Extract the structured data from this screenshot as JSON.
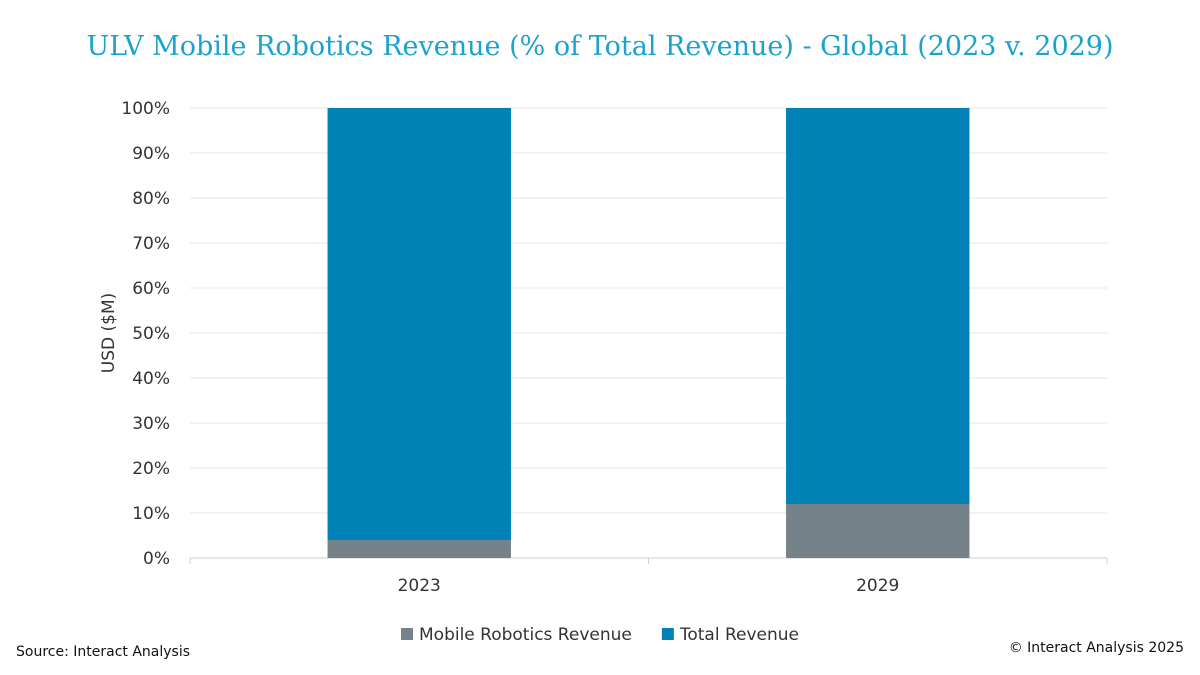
{
  "chart_data": {
    "type": "bar",
    "stacked": true,
    "title": "ULV Mobile Robotics Revenue (% of Total Revenue) - Global (2023 v. 2029)",
    "categories": [
      "2023",
      "2029"
    ],
    "series": [
      {
        "name": "Mobile Robotics Revenue",
        "color": "#76828a",
        "values": [
          4,
          12
        ]
      },
      {
        "name": "Total Revenue",
        "color": "#0082b5",
        "values": [
          96,
          88
        ]
      }
    ],
    "xlabel": "",
    "ylabel": "USD ($M)",
    "ylim": [
      0,
      100
    ],
    "yticks": [
      "0%",
      "10%",
      "20%",
      "30%",
      "40%",
      "50%",
      "60%",
      "70%",
      "80%",
      "90%",
      "100%"
    ],
    "grid": true,
    "legend_position": "bottom"
  },
  "footer": {
    "source": "Source: Interact Analysis",
    "copyright": "© Interact Analysis 2025"
  }
}
